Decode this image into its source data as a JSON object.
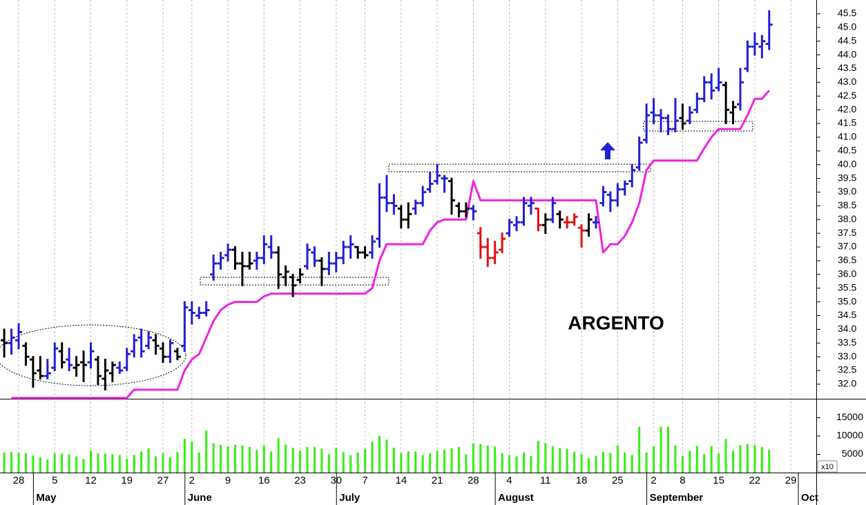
{
  "chart_data": {
    "type": "ohlc",
    "annotation": "ARGENTO",
    "categories": [
      null,
      null,
      "28",
      null,
      null,
      null,
      null,
      "5",
      null,
      null,
      null,
      null,
      "12",
      null,
      null,
      null,
      null,
      "19",
      null,
      null,
      null,
      null,
      "27",
      null,
      null,
      null,
      "2",
      null,
      null,
      null,
      null,
      "9",
      null,
      null,
      null,
      null,
      "16",
      null,
      null,
      null,
      null,
      "23",
      null,
      null,
      null,
      null,
      "30",
      null,
      null,
      null,
      "7",
      null,
      null,
      null,
      null,
      "14",
      null,
      null,
      null,
      null,
      "21",
      null,
      null,
      null,
      null,
      "28",
      null,
      null,
      null,
      null,
      "4",
      null,
      null,
      null,
      null,
      "11",
      null,
      null,
      null,
      null,
      "18",
      null,
      null,
      null,
      null,
      "25",
      null,
      null,
      null,
      null,
      "2",
      null,
      null,
      null,
      "8",
      null,
      null,
      null,
      null,
      "15",
      null,
      null,
      null,
      null,
      "22",
      null,
      null,
      null,
      null,
      "29",
      null,
      null
    ],
    "months": [
      {
        "name": "May",
        "start": 5
      },
      {
        "name": "June",
        "start": 26
      },
      {
        "name": "July",
        "start": 47
      },
      {
        "name": "August",
        "start": 69
      },
      {
        "name": "September",
        "start": 90
      },
      {
        "name": "Oct",
        "start": 111
      }
    ],
    "open": [
      33.6,
      33.5,
      33.6,
      33.4,
      32.9,
      32.5,
      32.3,
      32.6,
      33.2,
      32.9,
      32.6,
      32.8,
      32.8,
      32.9,
      32.2,
      32.4,
      32.6,
      32.6,
      33.2,
      33.7,
      33.4,
      33.6,
      33.3,
      33.0,
      33.2,
      33.4,
      34.7,
      34.5,
      34.6,
      36.0,
      36.4,
      36.7,
      36.9,
      36.4,
      36.3,
      36.5,
      36.6,
      37.0,
      36.8,
      35.9,
      35.9,
      35.8,
      36.3,
      36.8,
      36.5,
      36.2,
      36.4,
      36.6,
      37.0,
      37.0,
      36.8,
      36.8,
      37.3,
      38.8,
      38.6,
      38.4,
      38.0,
      38.4,
      38.6,
      39.1,
      39.4,
      39.5,
      39.4,
      38.5,
      38.3,
      38.4,
      37.5,
      37.0,
      36.6,
      36.9,
      37.5,
      37.8,
      37.9,
      38.5,
      38.4,
      37.8,
      38.0,
      38.2,
      37.9,
      37.9,
      37.7,
      37.6,
      37.9,
      38.6,
      38.9,
      38.7,
      39.1,
      39.4,
      39.9,
      40.9,
      41.9,
      41.8,
      41.7,
      41.3,
      41.7,
      41.6,
      42.0,
      42.4,
      43.0,
      42.8,
      42.9,
      41.9,
      42.2,
      43.5,
      44.3,
      44.3,
      44.4,
      null,
      null,
      null,
      null,
      null
    ],
    "high": [
      34.0,
      34.0,
      34.2,
      33.5,
      33.0,
      33.0,
      32.9,
      33.5,
      33.5,
      33.3,
      33.0,
      33.2,
      33.5,
      33.0,
      32.9,
      32.8,
      32.8,
      33.3,
      33.8,
      34.0,
      33.9,
      33.8,
      33.5,
      33.6,
      33.3,
      35.0,
      35.0,
      34.8,
      35.0,
      36.7,
      36.8,
      37.1,
      37.0,
      36.8,
      36.8,
      36.8,
      37.4,
      37.4,
      37.0,
      36.3,
      36.0,
      36.2,
      37.1,
      37.0,
      36.6,
      36.8,
      36.8,
      37.2,
      37.4,
      37.0,
      37.0,
      37.4,
      39.3,
      39.6,
      38.9,
      38.5,
      38.6,
      38.7,
      39.2,
      39.7,
      40.0,
      39.6,
      39.5,
      38.6,
      38.6,
      38.5,
      37.7,
      37.3,
      37.2,
      37.5,
      38.0,
      38.1,
      38.8,
      38.8,
      38.4,
      38.2,
      38.8,
      38.3,
      38.1,
      38.2,
      37.8,
      38.2,
      38.1,
      39.2,
      39.0,
      39.3,
      39.4,
      40.0,
      41.0,
      42.2,
      42.4,
      42.0,
      41.8,
      42.4,
      42.2,
      42.1,
      42.6,
      43.2,
      43.3,
      43.5,
      43.0,
      42.3,
      43.5,
      44.5,
      44.8,
      44.7,
      45.6,
      null,
      null,
      null,
      null,
      null
    ],
    "low": [
      33.0,
      33.1,
      33.3,
      32.7,
      31.9,
      32.2,
      32.2,
      32.5,
      32.6,
      32.5,
      32.3,
      32.1,
      32.6,
      32.0,
      31.8,
      32.1,
      32.4,
      32.5,
      33.0,
      33.0,
      33.3,
      33.1,
      32.8,
      32.8,
      32.9,
      33.2,
      34.2,
      34.4,
      34.5,
      35.8,
      36.2,
      36.5,
      36.2,
      35.6,
      36.2,
      36.2,
      36.4,
      36.6,
      35.5,
      35.6,
      35.2,
      35.7,
      36.2,
      36.3,
      35.6,
      36.0,
      36.1,
      36.4,
      36.6,
      36.6,
      36.6,
      36.6,
      37.0,
      38.3,
      38.2,
      37.7,
      37.7,
      38.2,
      38.5,
      39.0,
      39.3,
      39.0,
      38.2,
      38.1,
      38.1,
      38.0,
      36.6,
      36.3,
      36.4,
      36.8,
      37.4,
      37.6,
      37.8,
      38.2,
      37.6,
      37.5,
      37.9,
      37.7,
      37.7,
      37.8,
      37.0,
      37.4,
      37.7,
      38.5,
      38.3,
      38.5,
      38.9,
      39.2,
      39.8,
      40.8,
      41.5,
      41.2,
      41.1,
      41.2,
      41.3,
      41.5,
      41.9,
      42.3,
      42.4,
      42.7,
      41.5,
      41.5,
      42.0,
      43.4,
      44.0,
      43.9,
      44.2,
      null,
      null,
      null,
      null,
      null
    ],
    "close": [
      33.5,
      33.7,
      33.9,
      33.0,
      32.4,
      32.3,
      32.4,
      33.3,
      32.8,
      32.7,
      32.7,
      32.7,
      33.2,
      32.3,
      32.5,
      32.7,
      32.5,
      33.1,
      33.6,
      33.2,
      33.7,
      33.4,
      33.0,
      33.5,
      33.0,
      34.8,
      34.6,
      34.6,
      34.7,
      36.4,
      36.6,
      36.9,
      36.4,
      36.3,
      36.4,
      36.6,
      37.1,
      36.8,
      36.0,
      36.1,
      35.6,
      36.0,
      36.9,
      36.5,
      36.2,
      36.4,
      36.6,
      37.0,
      37.1,
      36.8,
      36.7,
      37.2,
      38.8,
      38.6,
      38.5,
      38.0,
      38.2,
      38.6,
      39.0,
      39.3,
      39.6,
      39.5,
      38.7,
      38.3,
      38.4,
      38.3,
      37.0,
      36.6,
      36.8,
      37.3,
      37.9,
      37.9,
      38.6,
      38.6,
      37.8,
      38.0,
      38.6,
      38.0,
      37.9,
      38.1,
      37.6,
      38.0,
      37.9,
      39.0,
      38.7,
      39.1,
      39.3,
      39.8,
      40.8,
      41.8,
      41.8,
      41.7,
      41.3,
      41.6,
      41.5,
      41.9,
      42.4,
      43.0,
      42.7,
      43.0,
      42.0,
      42.1,
      43.0,
      44.3,
      44.4,
      44.5,
      45.1,
      null,
      null,
      null,
      null,
      null
    ],
    "colors": [
      "#000000",
      "#1f1fd6",
      "#1f1fd6",
      "#000000",
      "#000000",
      "#000000",
      "#1f1fd6",
      "#1f1fd6",
      "#000000",
      "#1f1fd6",
      "#000000",
      "#000000",
      "#1f1fd6",
      "#000000",
      "#000000",
      "#000000",
      "#1f1fd6",
      "#1f1fd6",
      "#1f1fd6",
      "#1f1fd6",
      "#1f1fd6",
      "#000000",
      "#000000",
      "#1f1fd6",
      "#000000",
      "#1f1fd6",
      "#1f1fd6",
      "#1f1fd6",
      "#1f1fd6",
      "#1f1fd6",
      "#1f1fd6",
      "#1f1fd6",
      "#000000",
      "#000000",
      "#000000",
      "#1f1fd6",
      "#1f1fd6",
      "#1f1fd6",
      "#000000",
      "#000000",
      "#000000",
      "#000000",
      "#1f1fd6",
      "#1f1fd6",
      "#000000",
      "#1f1fd6",
      "#1f1fd6",
      "#1f1fd6",
      "#1f1fd6",
      "#000000",
      "#000000",
      "#1f1fd6",
      "#1f1fd6",
      "#1f1fd6",
      "#1f1fd6",
      "#000000",
      "#000000",
      "#1f1fd6",
      "#1f1fd6",
      "#1f1fd6",
      "#1f1fd6",
      "#1f1fd6",
      "#000000",
      "#000000",
      "#000000",
      "#1f1fd6",
      "#e01010",
      "#e01010",
      "#e01010",
      "#e01010",
      "#1f1fd6",
      "#1f1fd6",
      "#1f1fd6",
      "#1f1fd6",
      "#e01010",
      "#000000",
      "#1f1fd6",
      "#000000",
      "#e01010",
      "#e01010",
      "#e01010",
      "#000000",
      "#1f1fd6",
      "#1f1fd6",
      "#1f1fd6",
      "#1f1fd6",
      "#1f1fd6",
      "#1f1fd6",
      "#1f1fd6",
      "#1f1fd6",
      "#1f1fd6",
      "#1f1fd6",
      "#1f1fd6",
      "#1f1fd6",
      "#000000",
      "#1f1fd6",
      "#1f1fd6",
      "#1f1fd6",
      "#1f1fd6",
      "#1f1fd6",
      "#000000",
      "#000000",
      "#1f1fd6",
      "#1f1fd6",
      "#1f1fd6",
      "#1f1fd6",
      "#1f1fd6",
      null,
      null,
      null,
      null,
      null
    ],
    "stop": {
      "color": "#ee22dd",
      "values": [
        null,
        31.5,
        31.5,
        31.5,
        31.5,
        31.5,
        31.5,
        31.5,
        31.5,
        31.5,
        31.5,
        31.5,
        31.5,
        31.5,
        31.5,
        31.5,
        31.5,
        31.5,
        31.8,
        31.8,
        31.8,
        31.8,
        31.8,
        31.8,
        31.8,
        32.5,
        32.9,
        33.1,
        33.7,
        34.3,
        34.7,
        34.9,
        35.0,
        35.0,
        35.0,
        35.0,
        35.2,
        35.3,
        35.3,
        35.3,
        35.3,
        35.3,
        35.3,
        35.3,
        35.3,
        35.3,
        35.3,
        35.3,
        35.3,
        35.3,
        35.3,
        35.5,
        36.5,
        37.1,
        37.1,
        37.1,
        37.1,
        37.1,
        37.1,
        37.6,
        37.9,
        38.0,
        38.0,
        38.0,
        38.0,
        39.4,
        38.7,
        38.7,
        38.7,
        38.7,
        38.7,
        38.7,
        38.7,
        38.7,
        38.7,
        38.7,
        38.7,
        38.7,
        38.7,
        38.7,
        38.7,
        38.7,
        38.7,
        36.8,
        37.1,
        37.1,
        37.4,
        37.9,
        38.6,
        39.8,
        40.15,
        40.15,
        40.15,
        40.15,
        40.15,
        40.15,
        40.15,
        40.6,
        41.0,
        41.3,
        41.3,
        41.3,
        41.3,
        41.8,
        42.4,
        42.4,
        42.7,
        null,
        null,
        null,
        null,
        null
      ]
    },
    "ylim": [
      31.47,
      46.0
    ],
    "yticks": [
      {
        "value": 32,
        "label": "32.0"
      },
      32.5,
      {
        "value": 33,
        "label": "33.0"
      },
      33.5,
      {
        "value": 34,
        "label": "34.0"
      },
      34.5,
      {
        "value": 35,
        "label": "35.0"
      },
      35.5,
      {
        "value": 36,
        "label": "36.0"
      },
      36.5,
      {
        "value": 37,
        "label": "37.0"
      },
      37.5,
      {
        "value": 38,
        "label": "38.0"
      },
      38.5,
      {
        "value": 39,
        "label": "39.0"
      },
      39.5,
      {
        "value": 40,
        "label": "40.0"
      },
      40.5,
      {
        "value": 41,
        "label": "41.0"
      },
      41.5,
      {
        "value": 42,
        "label": "42.0"
      },
      42.5,
      {
        "value": 43,
        "label": "43.0"
      },
      43.5,
      {
        "value": 44,
        "label": "44.0"
      },
      44.5,
      {
        "value": 45,
        "label": "45.0"
      },
      45.5
    ],
    "grid": true,
    "volume": {
      "color": "#33ee11",
      "unit_label": "x10",
      "values": [
        5500,
        5600,
        5400,
        5300,
        4700,
        4200,
        3600,
        5300,
        5200,
        5000,
        4400,
        3700,
        6000,
        5200,
        5200,
        5000,
        4800,
        3800,
        4800,
        5800,
        6600,
        4400,
        5300,
        4200,
        5600,
        9200,
        8500,
        5500,
        11500,
        8000,
        7600,
        7200,
        7600,
        7400,
        7000,
        6200,
        7400,
        5800,
        9400,
        7700,
        6800,
        6000,
        7000,
        7000,
        6500,
        5000,
        6800,
        5600,
        4700,
        5500,
        6500,
        8500,
        10000,
        9000,
        6800,
        5300,
        5800,
        5700,
        4800,
        5300,
        6000,
        6300,
        6600,
        7000,
        5000,
        8000,
        7800,
        7400,
        7100,
        5300,
        4800,
        4400,
        5500,
        4500,
        8700,
        8000,
        7200,
        6700,
        6400,
        5700,
        5100,
        3900,
        4600,
        5700,
        5400,
        7400,
        5500,
        4800,
        12500,
        5500,
        7200,
        12500,
        12500,
        7400,
        4500,
        6000,
        7300,
        5000,
        7200,
        5300,
        9200,
        6000,
        7500,
        7800,
        7500,
        7000,
        6200,
        null,
        null,
        null,
        null,
        null
      ],
      "ylim": [
        0,
        19800
      ],
      "yticks": [
        5000,
        10000,
        15000
      ]
    }
  }
}
